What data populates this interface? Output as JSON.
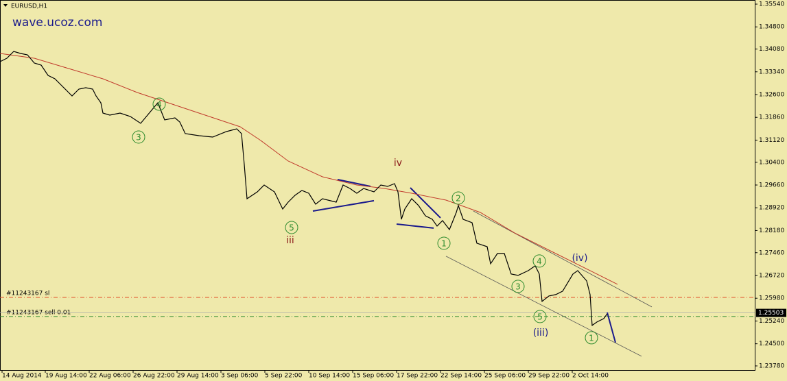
{
  "chart_data": {
    "type": "line",
    "title": "EURUSD,H1",
    "watermark": "wave.ucoz.com",
    "xlim": [
      0,
      1100
    ],
    "ylim": [
      1.23646,
      1.35674
    ],
    "xticks": [
      {
        "value": 3,
        "label": "14 Aug 2014"
      },
      {
        "value": 66,
        "label": "19 Aug 14:00"
      },
      {
        "value": 130,
        "label": "22 Aug 06:00"
      },
      {
        "value": 194,
        "label": "26 Aug 22:00"
      },
      {
        "value": 258,
        "label": "29 Aug 14:00"
      },
      {
        "value": 322,
        "label": "3 Sep 06:00"
      },
      {
        "value": 386,
        "label": "5 Sep 22:00"
      },
      {
        "value": 450,
        "label": "10 Sep 14:00"
      },
      {
        "value": 514,
        "label": "15 Sep 06:00"
      },
      {
        "value": 578,
        "label": "17 Sep 22:00"
      },
      {
        "value": 642,
        "label": "22 Sep 14:00"
      },
      {
        "value": 706,
        "label": "25 Sep 06:00"
      },
      {
        "value": 770,
        "label": "29 Sep 22:00"
      },
      {
        "value": 834,
        "label": "2 Oct 14:00"
      }
    ],
    "yticks": [
      {
        "value": 1.3554,
        "label": "1.35540"
      },
      {
        "value": 1.348,
        "label": "1.34800"
      },
      {
        "value": 1.3408,
        "label": "1.34080"
      },
      {
        "value": 1.3334,
        "label": "1.33340"
      },
      {
        "value": 1.326,
        "label": "1.32600"
      },
      {
        "value": 1.3186,
        "label": "1.31860"
      },
      {
        "value": 1.3112,
        "label": "1.31120"
      },
      {
        "value": 1.304,
        "label": "1.30400"
      },
      {
        "value": 1.2966,
        "label": "1.29660"
      },
      {
        "value": 1.2892,
        "label": "1.28920"
      },
      {
        "value": 1.2818,
        "label": "1.28180"
      },
      {
        "value": 1.2746,
        "label": "1.27460"
      },
      {
        "value": 1.2672,
        "label": "1.26720"
      },
      {
        "value": 1.2598,
        "label": "1.25980"
      },
      {
        "value": 1.2524,
        "label": "1.25240"
      },
      {
        "value": 1.245,
        "label": "1.24500"
      },
      {
        "value": 1.2378,
        "label": "1.23780"
      }
    ],
    "series": [
      {
        "color": "#000000",
        "x": [
          0,
          10,
          20,
          30,
          40,
          50,
          60,
          70,
          80,
          90,
          100,
          105,
          115,
          125,
          135,
          140,
          147,
          150,
          160,
          175,
          190,
          205,
          215,
          230,
          240,
          255,
          262,
          270,
          290,
          310,
          330,
          345,
          352,
          356,
          360,
          375,
          385,
          400,
          412,
          420,
          430,
          440,
          450,
          460,
          470,
          490,
          500,
          510,
          520,
          530,
          545,
          555,
          565,
          575,
          580,
          585,
          590,
          600,
          610,
          620,
          630,
          637,
          645,
          655,
          665,
          668,
          675,
          688,
          695,
          710,
          715,
          725,
          735,
          745,
          755,
          770,
          780,
          786,
          790,
          800,
          810,
          820,
          835,
          842,
          855,
          860,
          863,
          870,
          880,
          885
        ],
        "values": [
          1.33669,
          1.33781,
          1.34003,
          1.33937,
          1.33892,
          1.33625,
          1.33558,
          1.33224,
          1.33113,
          1.3289,
          1.32667,
          1.32556,
          1.32779,
          1.32823,
          1.32779,
          1.32556,
          1.32333,
          1.31999,
          1.31932,
          1.31999,
          1.31888,
          1.31665,
          1.31932,
          1.32333,
          1.31776,
          1.31843,
          1.3171,
          1.31331,
          1.31264,
          1.3122,
          1.31398,
          1.31487,
          1.31331,
          1.30329,
          1.29215,
          1.29438,
          1.29661,
          1.29438,
          1.28881,
          1.29104,
          1.29327,
          1.29483,
          1.29393,
          1.29037,
          1.29215,
          1.29104,
          1.29661,
          1.29549,
          1.29393,
          1.29549,
          1.29438,
          1.29661,
          1.29616,
          1.29705,
          1.29438,
          1.28547,
          1.28881,
          1.29215,
          1.28993,
          1.28659,
          1.28547,
          1.28325,
          1.28503,
          1.28213,
          1.2877,
          1.28993,
          1.28547,
          1.28436,
          1.27768,
          1.27656,
          1.271,
          1.27434,
          1.27434,
          1.26766,
          1.26721,
          1.26877,
          1.27033,
          1.26766,
          1.25875,
          1.26053,
          1.26098,
          1.26209,
          1.26766,
          1.26877,
          1.26543,
          1.26098,
          1.25095,
          1.25207,
          1.25318,
          1.25474
        ]
      },
      {
        "color": "#c0392b",
        "x": [
          0,
          50,
          100,
          150,
          200,
          260,
          320,
          350,
          380,
          420,
          470,
          520,
          560,
          600,
          650,
          700,
          750,
          800,
          840,
          870,
          900
        ],
        "values": [
          1.33937,
          1.33781,
          1.33447,
          1.33113,
          1.32667,
          1.32222,
          1.31776,
          1.31554,
          1.31108,
          1.3044,
          1.29928,
          1.29661,
          1.29549,
          1.29393,
          1.29171,
          1.2877,
          1.28102,
          1.27545,
          1.271,
          1.26766,
          1.26432
        ]
      }
    ],
    "trendlines": [
      {
        "color": "#1a1a8c",
        "x": [
          456,
          545
        ],
        "values": [
          1.28814,
          1.29149
        ]
      },
      {
        "color": "#1a1a8c",
        "x": [
          492,
          540
        ],
        "values": [
          1.29839,
          1.29616
        ]
      },
      {
        "color": "#1a1a8c",
        "x": [
          578,
          632
        ],
        "values": [
          1.28391,
          1.28258
        ]
      },
      {
        "color": "#1a1a8c",
        "x": [
          598,
          642
        ],
        "values": [
          1.29572,
          1.28592
        ]
      },
      {
        "color": "#1a1a8c",
        "x": [
          885,
          897
        ],
        "values": [
          1.25518,
          1.24539
        ]
      },
      {
        "color": "#555555",
        "x": [
          650,
          935
        ],
        "values": [
          1.27345,
          1.24093
        ]
      },
      {
        "color": "#555555",
        "x": [
          690,
          950
        ],
        "values": [
          1.28814,
          1.25697
        ]
      }
    ],
    "hlines": [
      {
        "label": "#11243167 sl",
        "value": 1.26008,
        "color": "#e0502a"
      },
      {
        "label": "#11243167 sell 0.01",
        "value": 1.25385,
        "color": "#2e8b2e"
      }
    ],
    "price_tag": 1.25503,
    "wave_labels": [
      {
        "text": "3",
        "x": 202,
        "y": 1.3122,
        "color": "#2e8b2e",
        "circle": true
      },
      {
        "text": "4",
        "x": 232,
        "y": 1.32289,
        "color": "#2e8b2e",
        "circle": true
      },
      {
        "text": "5",
        "x": 425,
        "y": 1.2828,
        "color": "#2e8b2e",
        "circle": true
      },
      {
        "text": "iii",
        "x": 423,
        "y": 1.27879,
        "color": "#8b1a1a",
        "circle": false
      },
      {
        "text": "iv",
        "x": 580,
        "y": 1.30396,
        "color": "#8b1a1a",
        "circle": false
      },
      {
        "text": "1",
        "x": 647,
        "y": 1.27768,
        "color": "#2e8b2e",
        "circle": true
      },
      {
        "text": "2",
        "x": 668,
        "y": 1.29238,
        "color": "#2e8b2e",
        "circle": true
      },
      {
        "text": "3",
        "x": 755,
        "y": 1.26365,
        "color": "#2e8b2e",
        "circle": true
      },
      {
        "text": "4",
        "x": 786,
        "y": 1.27189,
        "color": "#2e8b2e",
        "circle": true
      },
      {
        "text": "5",
        "x": 787,
        "y": 1.25385,
        "color": "#2e8b2e",
        "circle": true
      },
      {
        "text": "(iii)",
        "x": 788,
        "y": 1.24873,
        "color": "#1a1a8c",
        "circle": false
      },
      {
        "text": "(iv)",
        "x": 845,
        "y": 1.273,
        "color": "#1a1a8c",
        "circle": false
      },
      {
        "text": "1",
        "x": 862,
        "y": 1.24695,
        "color": "#2e8b2e",
        "circle": true
      }
    ]
  }
}
